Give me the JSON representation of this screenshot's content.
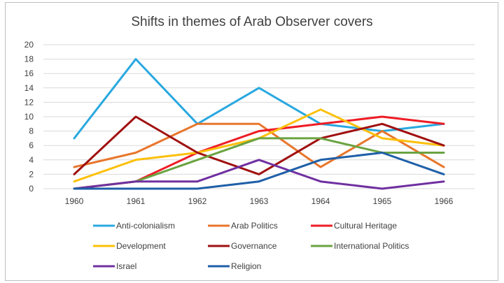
{
  "chart_data": {
    "type": "line",
    "title": "Shifts in themes of Arab Observer covers",
    "xlabel": "",
    "ylabel": "",
    "x": [
      "1960",
      "1961",
      "1962",
      "1963",
      "1964",
      "1965",
      "1966"
    ],
    "ylim": [
      0,
      20
    ],
    "yticks": [
      0,
      2,
      4,
      6,
      8,
      10,
      12,
      14,
      16,
      18,
      20
    ],
    "grid": true,
    "legend_position": "bottom",
    "series": [
      {
        "name": "Anti-colonialism",
        "color": "#29a8e0",
        "values": [
          7,
          18,
          9,
          14,
          9,
          8,
          9
        ]
      },
      {
        "name": "Arab Politics",
        "color": "#e8762c",
        "values": [
          3,
          5,
          9,
          9,
          3,
          8,
          3
        ]
      },
      {
        "name": "Cultural Heritage",
        "color": "#ee1c25",
        "values": [
          0,
          1,
          5,
          8,
          9,
          10,
          9
        ]
      },
      {
        "name": "Development",
        "color": "#fcc00a",
        "values": [
          1,
          4,
          5,
          7,
          11,
          7,
          6
        ]
      },
      {
        "name": "Governance",
        "color": "#a01010",
        "values": [
          2,
          10,
          5,
          2,
          7,
          9,
          6
        ]
      },
      {
        "name": "International Politics",
        "color": "#6aa341",
        "values": [
          0,
          1,
          4,
          7,
          7,
          5,
          5
        ]
      },
      {
        "name": "Israel",
        "color": "#7030a0",
        "values": [
          0,
          1,
          1,
          4,
          1,
          0,
          1
        ]
      },
      {
        "name": "Religion",
        "color": "#1f5fa8",
        "values": [
          0,
          0,
          0,
          1,
          4,
          5,
          2
        ]
      }
    ]
  }
}
